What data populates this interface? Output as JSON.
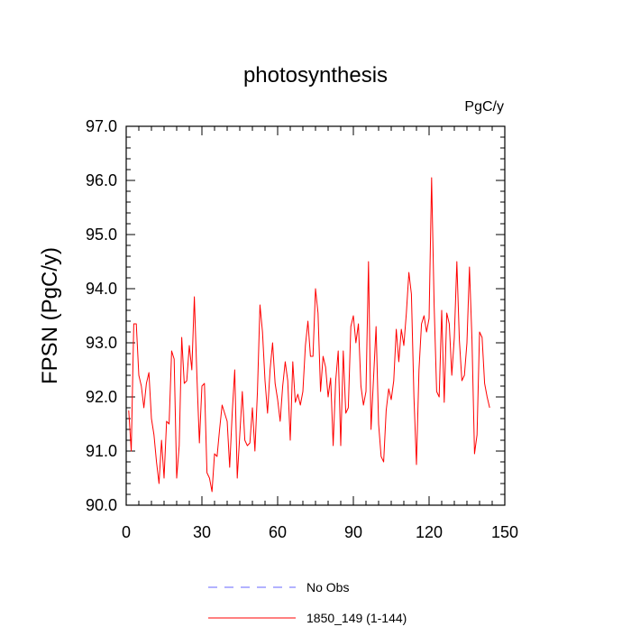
{
  "chart_data": {
    "type": "line",
    "title": "photosynthesis",
    "units_label": "PgC/y",
    "ylabel": "FPSN  (PgC/y)",
    "xlabel": "",
    "xlim": [
      0,
      150
    ],
    "ylim": [
      90.0,
      97.0
    ],
    "x_ticks": [
      0,
      30,
      60,
      90,
      120,
      150
    ],
    "x_tick_labels": [
      "0",
      "30",
      "60",
      "90",
      "120",
      "150"
    ],
    "y_ticks": [
      90,
      91,
      92,
      93,
      94,
      95,
      96,
      97
    ],
    "y_tick_labels": [
      "90.0",
      "91.0",
      "92.0",
      "93.0",
      "94.0",
      "95.0",
      "96.0",
      "97.0"
    ],
    "legend": [
      {
        "name": "No Obs",
        "color": "#6666ff",
        "dash": true
      },
      {
        "name": "1850_149 (1-144)",
        "color": "#ff0000",
        "dash": false
      }
    ],
    "series": [
      {
        "name": "1850_149 (1-144)",
        "color": "#ff0000",
        "x_start": 1,
        "values": [
          91.75,
          91.0,
          93.35,
          93.35,
          92.4,
          92.2,
          91.8,
          92.25,
          92.45,
          91.6,
          91.3,
          90.8,
          90.4,
          91.2,
          90.5,
          91.55,
          91.5,
          92.85,
          92.7,
          90.5,
          91.1,
          93.1,
          92.25,
          92.3,
          92.95,
          92.5,
          93.85,
          92.4,
          91.15,
          92.2,
          92.25,
          90.6,
          90.5,
          90.25,
          90.95,
          90.9,
          91.4,
          91.85,
          91.7,
          91.55,
          90.7,
          91.7,
          92.5,
          90.5,
          91.3,
          92.1,
          91.2,
          91.1,
          91.15,
          91.8,
          91.0,
          92.1,
          93.7,
          93.2,
          92.3,
          91.7,
          92.5,
          93.0,
          92.25,
          91.95,
          91.55,
          92.2,
          92.65,
          92.3,
          91.2,
          92.65,
          91.9,
          92.05,
          91.85,
          92.1,
          92.95,
          93.4,
          92.75,
          92.75,
          94.0,
          93.55,
          92.1,
          92.75,
          92.55,
          92.0,
          92.35,
          91.1,
          92.3,
          92.85,
          91.1,
          92.85,
          91.7,
          91.8,
          93.3,
          93.5,
          93.0,
          93.35,
          92.2,
          91.85,
          92.1,
          94.5,
          91.4,
          92.35,
          93.3,
          91.5,
          90.9,
          90.8,
          91.75,
          92.15,
          91.95,
          92.3,
          93.25,
          92.65,
          93.25,
          92.95,
          93.55,
          94.3,
          93.9,
          92.0,
          90.75,
          92.5,
          93.35,
          93.5,
          93.2,
          93.45,
          96.05,
          93.7,
          92.1,
          92.0,
          93.6,
          91.9,
          93.55,
          93.35,
          92.4,
          93.1,
          94.5,
          93.05,
          92.3,
          92.4,
          93.0,
          94.4,
          93.05,
          90.95,
          91.3,
          93.2,
          93.1,
          92.25,
          92.0,
          91.8
        ]
      }
    ]
  }
}
